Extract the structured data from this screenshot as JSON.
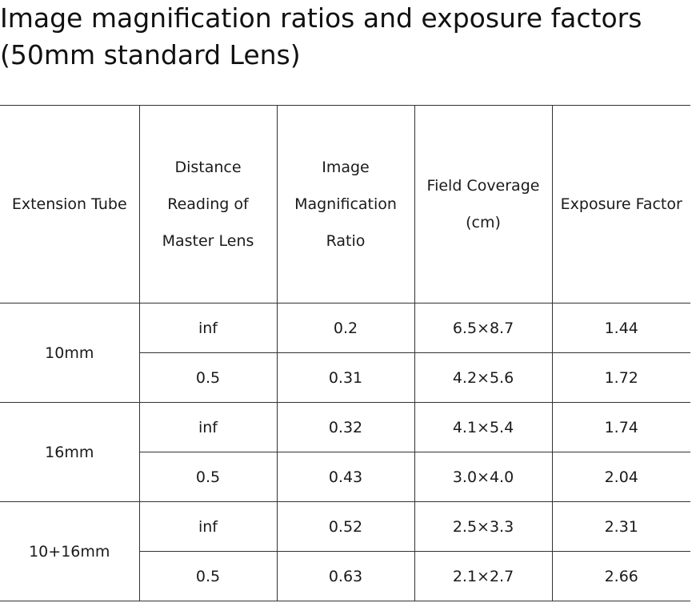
{
  "title": {
    "line1": "Image magnification ratios and exposure factors",
    "line2": "(50mm standard Lens)"
  },
  "table": {
    "headers": [
      "Extension Tube",
      "Distance Reading of Master Lens",
      "Image Magnification Ratio",
      "Field Coverage (cm)",
      "Exposure Factor"
    ],
    "groups": [
      {
        "tube": "10mm",
        "rows": [
          {
            "distance": "inf",
            "ratio": "0.2",
            "coverage": "6.5×8.7",
            "factor": "1.44"
          },
          {
            "distance": "0.5",
            "ratio": "0.31",
            "coverage": "4.2×5.6",
            "factor": "1.72"
          }
        ]
      },
      {
        "tube": "16mm",
        "rows": [
          {
            "distance": "inf",
            "ratio": "0.32",
            "coverage": "4.1×5.4",
            "factor": "1.74"
          },
          {
            "distance": "0.5",
            "ratio": "0.43",
            "coverage": "3.0×4.0",
            "factor": "2.04"
          }
        ]
      },
      {
        "tube": "10+16mm",
        "rows": [
          {
            "distance": "inf",
            "ratio": "0.52",
            "coverage": "2.5×3.3",
            "factor": "2.31"
          },
          {
            "distance": "0.5",
            "ratio": "0.63",
            "coverage": "2.1×2.7",
            "factor": "2.66"
          }
        ]
      }
    ]
  }
}
